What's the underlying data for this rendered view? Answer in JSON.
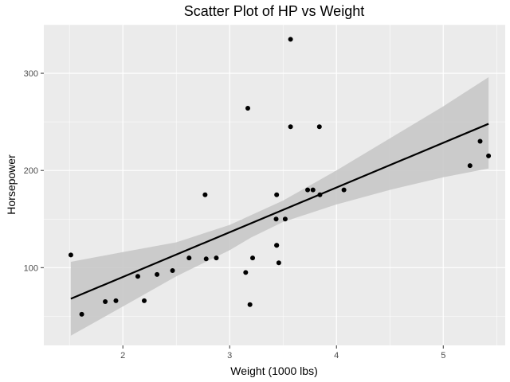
{
  "chart_data": {
    "type": "scatter",
    "title": "Scatter Plot of HP vs Weight",
    "xlabel": "Weight (1000 lbs)",
    "ylabel": "Horsepower",
    "xlim": [
      1.26,
      5.58
    ],
    "ylim": [
      20,
      350
    ],
    "xticks": [
      2,
      3,
      4,
      5
    ],
    "xtick_labels": [
      "2",
      "3",
      "4",
      "5"
    ],
    "yticks": [
      100,
      200,
      300
    ],
    "ytick_labels": [
      "100",
      "200",
      "300"
    ],
    "grid": true,
    "legend": "none",
    "points": [
      {
        "x": 2.62,
        "y": 110
      },
      {
        "x": 2.875,
        "y": 110
      },
      {
        "x": 2.32,
        "y": 93
      },
      {
        "x": 3.215,
        "y": 110
      },
      {
        "x": 3.44,
        "y": 175
      },
      {
        "x": 3.46,
        "y": 105
      },
      {
        "x": 3.57,
        "y": 245
      },
      {
        "x": 3.19,
        "y": 62
      },
      {
        "x": 3.15,
        "y": 95
      },
      {
        "x": 3.44,
        "y": 123
      },
      {
        "x": 3.44,
        "y": 123
      },
      {
        "x": 4.07,
        "y": 180
      },
      {
        "x": 3.73,
        "y": 180
      },
      {
        "x": 3.78,
        "y": 180
      },
      {
        "x": 5.25,
        "y": 205
      },
      {
        "x": 5.424,
        "y": 215
      },
      {
        "x": 5.345,
        "y": 230
      },
      {
        "x": 2.2,
        "y": 66
      },
      {
        "x": 1.615,
        "y": 52
      },
      {
        "x": 1.835,
        "y": 65
      },
      {
        "x": 2.465,
        "y": 97
      },
      {
        "x": 3.52,
        "y": 150
      },
      {
        "x": 3.435,
        "y": 150
      },
      {
        "x": 3.84,
        "y": 245
      },
      {
        "x": 3.845,
        "y": 175
      },
      {
        "x": 1.935,
        "y": 66
      },
      {
        "x": 2.14,
        "y": 91
      },
      {
        "x": 1.513,
        "y": 113
      },
      {
        "x": 3.17,
        "y": 264
      },
      {
        "x": 2.77,
        "y": 175
      },
      {
        "x": 3.57,
        "y": 335
      },
      {
        "x": 2.78,
        "y": 109
      }
    ],
    "trend_line": {
      "x": [
        1.513,
        5.424
      ],
      "y": [
        68,
        248
      ]
    },
    "confidence_band": {
      "x": [
        1.513,
        2.0,
        2.5,
        3.0,
        3.2,
        3.5,
        4.0,
        4.5,
        5.0,
        5.424
      ],
      "lower": [
        30,
        60,
        91,
        118,
        131,
        147,
        165,
        180,
        193,
        202
      ],
      "upper": [
        106,
        116,
        126,
        144,
        154,
        169,
        200,
        233,
        266,
        296
      ]
    },
    "colors": {
      "panel": "#ebebeb",
      "grid_major": "#ffffff",
      "band": "#c8c8c8",
      "line": "#000000",
      "point": "#000000"
    }
  }
}
